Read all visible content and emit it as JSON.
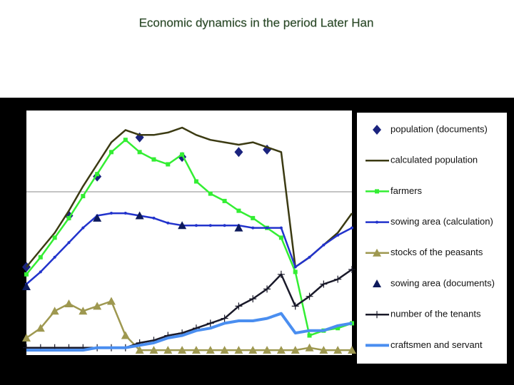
{
  "chart_data": {
    "type": "line",
    "title": "Economic dynamics in the period Later Han",
    "ylim": [
      0,
      100
    ],
    "series": [
      {
        "name": "population (documents)",
        "color": "#1a237e",
        "marker": "diamond",
        "line": false,
        "values": [
          36,
          null,
          null,
          57,
          null,
          73,
          null,
          null,
          89,
          null,
          null,
          81,
          null,
          null,
          null,
          83,
          null,
          84,
          null,
          null,
          null,
          null,
          null,
          null
        ]
      },
      {
        "name": "calculated population",
        "color": "#3b3a12",
        "marker": "none",
        "line": true,
        "values": [
          36,
          43,
          50,
          59,
          69,
          78,
          87,
          92,
          90,
          90,
          91,
          93,
          90,
          88,
          87,
          86,
          87,
          85,
          83,
          36,
          40,
          45,
          50,
          58
        ]
      },
      {
        "name": "farmers",
        "color": "#33ee33",
        "marker": "square",
        "line": true,
        "values": [
          33,
          40,
          48,
          56,
          65,
          74,
          83,
          88,
          83,
          80,
          78,
          82,
          71,
          66,
          63,
          59,
          56,
          52,
          48,
          34,
          8,
          10,
          11,
          13
        ]
      },
      {
        "name": "sowing area (calculation)",
        "color": "#2233cc",
        "marker": "dot",
        "line": true,
        "values": [
          29,
          34,
          40,
          46,
          52,
          57,
          58,
          58,
          57,
          56,
          54,
          53,
          53,
          53,
          53,
          53,
          52,
          52,
          52,
          36,
          40,
          45,
          49,
          52
        ]
      },
      {
        "name": "stocks of the peasants",
        "color": "#9e9850",
        "marker": "triangle",
        "line": true,
        "values": [
          7,
          11,
          18,
          21,
          18,
          20,
          22,
          8,
          2,
          2,
          2,
          2,
          2,
          2,
          2,
          2,
          2,
          2,
          2,
          2,
          3,
          2,
          2,
          2
        ]
      },
      {
        "name": "sowing area (documents)",
        "color": "#0d1a5c",
        "marker": "triangle",
        "line": false,
        "values": [
          28,
          null,
          null,
          null,
          null,
          56,
          null,
          null,
          57,
          null,
          null,
          53,
          null,
          null,
          null,
          52,
          null,
          null,
          null,
          null,
          null,
          null,
          null,
          null
        ]
      },
      {
        "name": "number of the tenants",
        "color": "#1a1a2a",
        "marker": "plus",
        "line": true,
        "values": [
          3,
          3,
          3,
          3,
          3,
          3,
          3,
          3,
          5,
          6,
          8,
          9,
          11,
          13,
          15,
          20,
          23,
          27,
          33,
          20,
          24,
          29,
          31,
          35
        ]
      },
      {
        "name": "craftsmen and servant",
        "color": "#4a8ef0",
        "marker": "none",
        "line": true,
        "width": 4,
        "values": [
          2,
          2,
          2,
          2,
          2,
          3,
          3,
          3,
          4,
          5,
          7,
          8,
          10,
          11,
          13,
          14,
          14,
          15,
          17,
          9,
          10,
          10,
          12,
          13
        ]
      }
    ]
  }
}
